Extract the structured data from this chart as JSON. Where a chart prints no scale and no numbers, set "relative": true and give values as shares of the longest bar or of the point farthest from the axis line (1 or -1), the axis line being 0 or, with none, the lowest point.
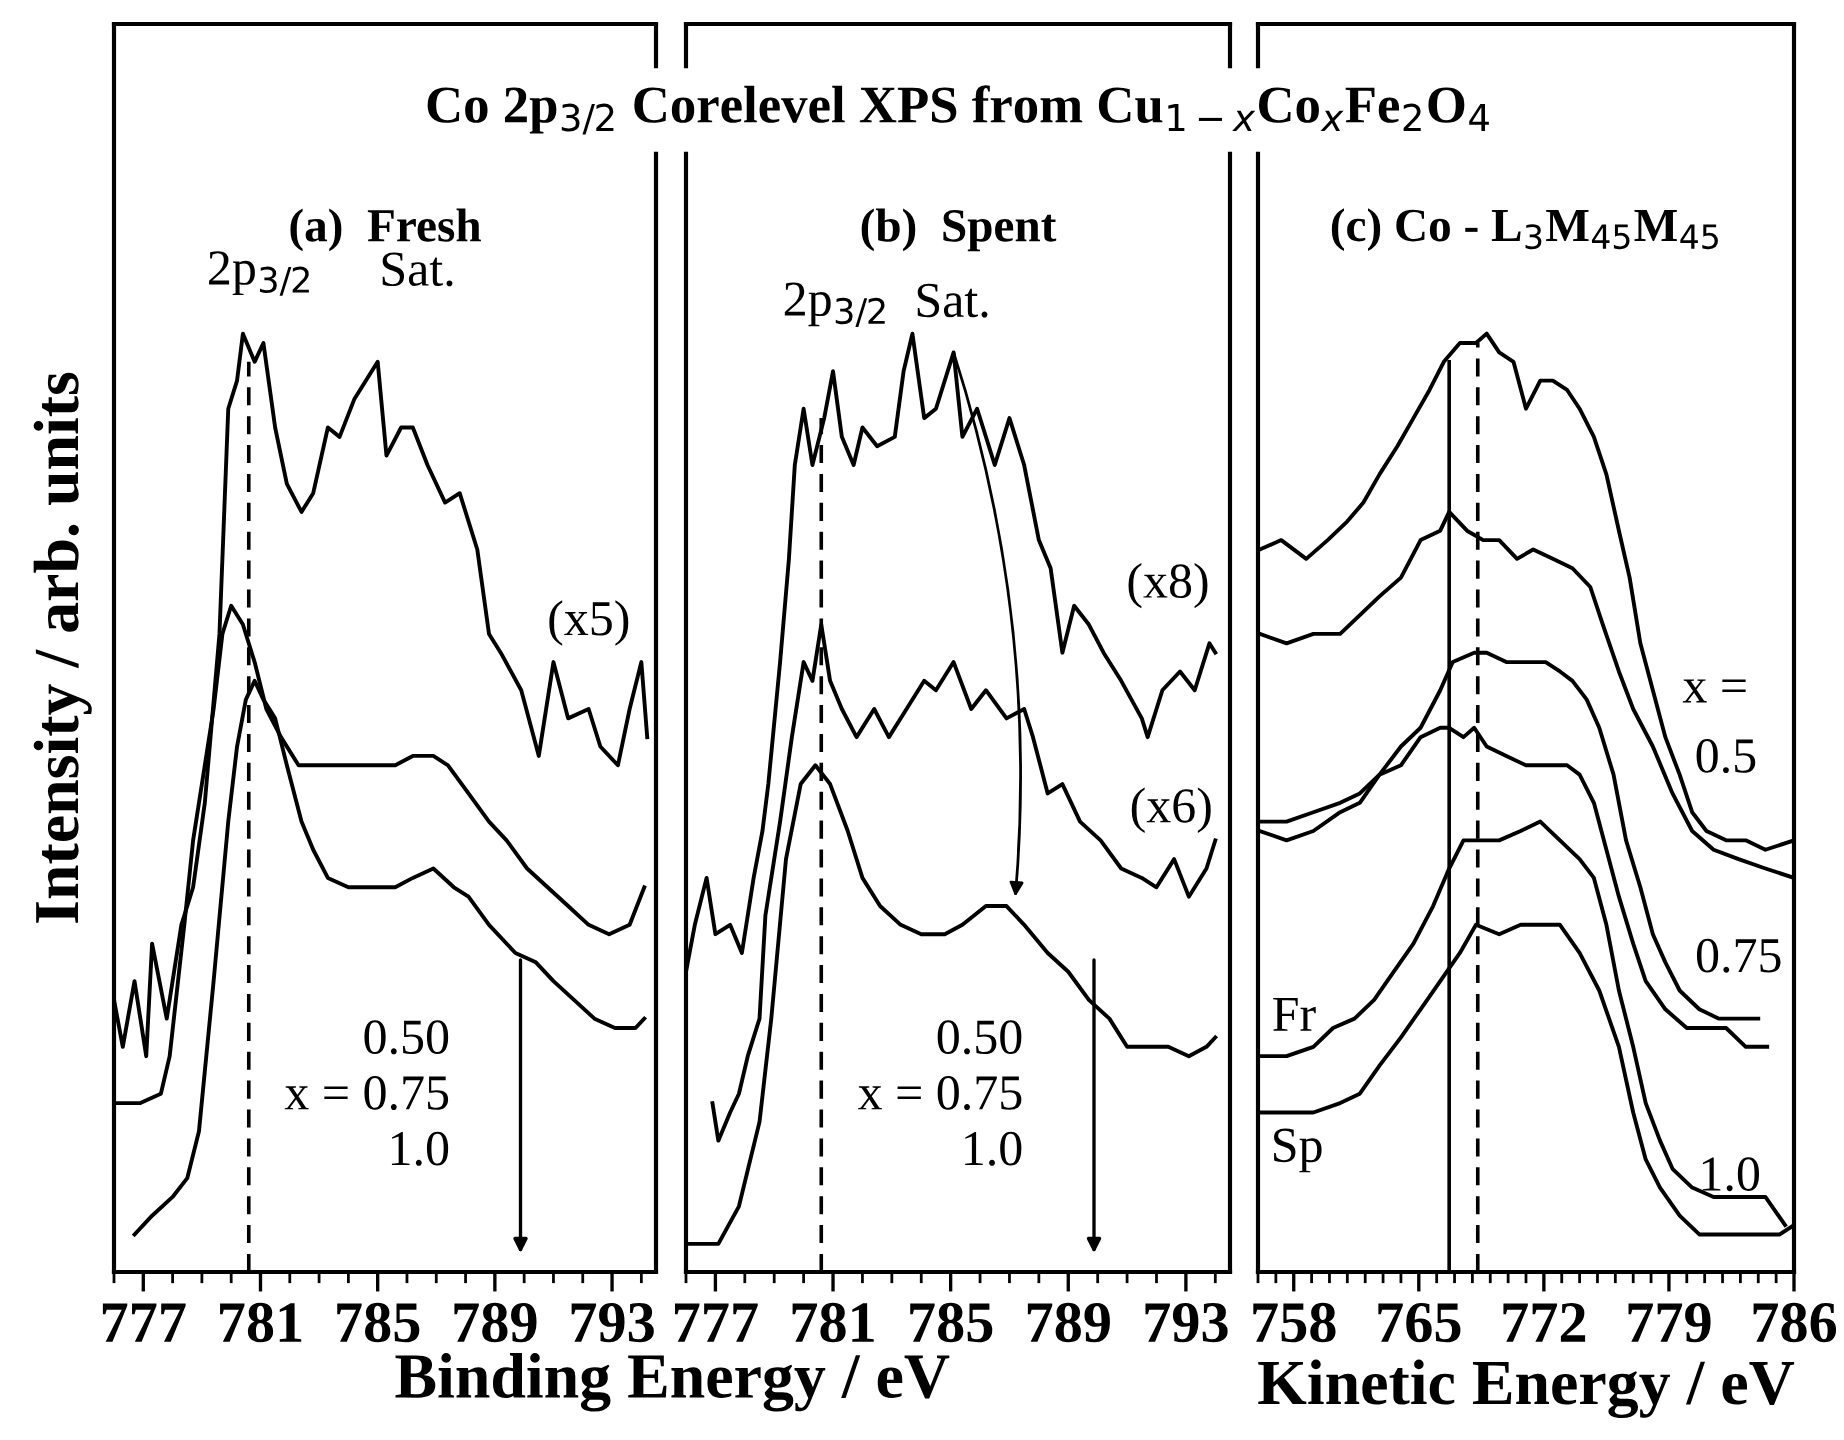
{
  "chart_data": [
    {
      "type": "line",
      "title": "Co 2p$_{3/2}$ Corelevel XPS from Cu$_{1−x}$Co$_{x}$Fe$_{2}$O$_{4}$",
      "subtitle": "(a)  Fresh",
      "xlabel": "Binding Energy / eV",
      "ylabel": "Intensity / arb. units",
      "relative": true,
      "xlim": [
        776,
        794.5
      ],
      "xticks": [
        777,
        781,
        785,
        789,
        793
      ],
      "tick_labels": "x",
      "grid": false,
      "legend": false,
      "color": "#000000",
      "series": [
        {
          "x": [
            776.0,
            776.3,
            776.7,
            777.1,
            777.3,
            777.8,
            778.3,
            778.7,
            779.1,
            779.6,
            779.9,
            780.2,
            780.4,
            780.8,
            781.1,
            781.5,
            781.9,
            782.4,
            782.8,
            783.3,
            783.7,
            784.2,
            784.6,
            785.0,
            785.3,
            785.8,
            786.2,
            786.7,
            787.3,
            787.8,
            788.4,
            788.8,
            789.2,
            789.9,
            790.5,
            791.0,
            791.5,
            792.2,
            792.6,
            793.2,
            793.6,
            794.0,
            794.2
          ],
          "values": [
            0.29,
            0.24,
            0.31,
            0.23,
            0.35,
            0.27,
            0.37,
            0.41,
            0.5,
            0.68,
            0.92,
            0.95,
            1.0,
            0.97,
            0.99,
            0.9,
            0.84,
            0.81,
            0.83,
            0.9,
            0.89,
            0.93,
            0.95,
            0.97,
            0.87,
            0.9,
            0.9,
            0.86,
            0.82,
            0.83,
            0.77,
            0.68,
            0.66,
            0.62,
            0.55,
            0.65,
            0.59,
            0.6,
            0.56,
            0.54,
            0.6,
            0.65,
            0.57
          ]
        },
        {
          "x": [
            776.1,
            776.9,
            777.6,
            777.9,
            778.4,
            778.7,
            779.4,
            779.7,
            780.0,
            780.4,
            780.8,
            781.2,
            781.7,
            782.3,
            782.8,
            783.7,
            784.6,
            785.6,
            786.2,
            786.9,
            787.4,
            788.1,
            788.8,
            789.4,
            790.1,
            790.8,
            791.5,
            792.2,
            792.9,
            793.6,
            794.1
          ],
          "values": [
            0.18,
            0.18,
            0.19,
            0.23,
            0.37,
            0.46,
            0.6,
            0.68,
            0.71,
            0.69,
            0.65,
            0.6,
            0.57,
            0.54,
            0.54,
            0.54,
            0.54,
            0.54,
            0.55,
            0.55,
            0.54,
            0.51,
            0.48,
            0.46,
            0.43,
            0.41,
            0.39,
            0.37,
            0.36,
            0.37,
            0.41
          ]
        },
        {
          "x": [
            776.7,
            777.3,
            778.0,
            778.5,
            778.9,
            779.4,
            779.9,
            780.2,
            780.5,
            780.8,
            781.1,
            781.5,
            781.9,
            782.4,
            782.8,
            783.3,
            784.0,
            784.6,
            785.6,
            786.2,
            786.9,
            787.6,
            788.1,
            788.8,
            789.7,
            790.4,
            791.0,
            791.7,
            792.4,
            793.1,
            793.8,
            794.1
          ],
          "values": [
            0.04,
            0.06,
            0.08,
            0.1,
            0.15,
            0.31,
            0.48,
            0.56,
            0.61,
            0.63,
            0.61,
            0.59,
            0.54,
            0.48,
            0.45,
            0.42,
            0.41,
            0.41,
            0.41,
            0.42,
            0.43,
            0.41,
            0.4,
            0.37,
            0.34,
            0.33,
            0.31,
            0.29,
            0.27,
            0.26,
            0.26,
            0.27
          ]
        }
      ],
      "ref_lines": [
        {
          "axis": "x",
          "value": 780.6,
          "line_style": "dashed"
        }
      ],
      "annotations": [
        "2p$_{3/2}$",
        "Sat.",
        "(x5)",
        "0.50\nx = 0.75\n1.0"
      ]
    },
    {
      "type": "line",
      "subtitle": "(b)  Spent",
      "relative": true,
      "xlim": [
        776,
        794.5
      ],
      "xticks": [
        777,
        781,
        785,
        789,
        793
      ],
      "tick_labels": "x",
      "grid": false,
      "legend": false,
      "color": "#000000",
      "series": [
        {
          "x": [
            776.0,
            776.3,
            776.7,
            777.0,
            777.5,
            777.9,
            778.3,
            778.6,
            778.8,
            779.2,
            779.5,
            779.7,
            780.0,
            780.3,
            780.7,
            781.0,
            781.3,
            781.7,
            782.0,
            782.5,
            783.1,
            783.4,
            783.7,
            784.1,
            784.5,
            785.1,
            785.4,
            785.9,
            786.5,
            787.0,
            787.5,
            788.0,
            788.4,
            788.8,
            789.2,
            789.7,
            790.2,
            790.8,
            791.5,
            791.7,
            792.2,
            792.8,
            793.3,
            793.8,
            794.0
          ],
          "values": [
            0.32,
            0.37,
            0.42,
            0.36,
            0.37,
            0.34,
            0.42,
            0.47,
            0.52,
            0.65,
            0.76,
            0.86,
            0.92,
            0.86,
            0.91,
            0.96,
            0.89,
            0.86,
            0.9,
            0.88,
            0.89,
            0.96,
            1.0,
            0.91,
            0.92,
            0.98,
            0.89,
            0.92,
            0.86,
            0.91,
            0.86,
            0.78,
            0.75,
            0.66,
            0.71,
            0.69,
            0.66,
            0.63,
            0.59,
            0.57,
            0.62,
            0.64,
            0.62,
            0.67,
            0.66
          ]
        },
        {
          "x": [
            776.9,
            777.1,
            777.5,
            777.8,
            778.1,
            778.5,
            778.7,
            779.2,
            779.6,
            780.0,
            780.3,
            780.6,
            780.9,
            781.3,
            781.8,
            782.4,
            782.9,
            783.5,
            784.1,
            784.5,
            785.1,
            785.7,
            786.2,
            786.9,
            787.5,
            787.8,
            788.3,
            788.8,
            789.4,
            790.1,
            790.8,
            791.5,
            792.0,
            792.6,
            793.1,
            793.7,
            794.0
          ],
          "values": [
            0.18,
            0.14,
            0.17,
            0.19,
            0.23,
            0.27,
            0.38,
            0.48,
            0.57,
            0.65,
            0.63,
            0.69,
            0.63,
            0.6,
            0.57,
            0.6,
            0.57,
            0.6,
            0.63,
            0.62,
            0.65,
            0.6,
            0.62,
            0.59,
            0.6,
            0.57,
            0.51,
            0.52,
            0.48,
            0.46,
            0.43,
            0.42,
            0.41,
            0.44,
            0.4,
            0.43,
            0.46
          ]
        },
        {
          "x": [
            776.0,
            776.7,
            777.1,
            777.8,
            778.5,
            778.9,
            779.4,
            779.9,
            780.4,
            780.9,
            781.5,
            782.0,
            782.6,
            783.3,
            784.0,
            784.8,
            785.4,
            786.2,
            786.9,
            787.5,
            788.3,
            789.0,
            789.7,
            790.4,
            791.0,
            791.7,
            792.4,
            793.1,
            793.7,
            794.0
          ],
          "values": [
            0.03,
            0.03,
            0.03,
            0.07,
            0.16,
            0.27,
            0.44,
            0.52,
            0.54,
            0.52,
            0.47,
            0.42,
            0.39,
            0.37,
            0.36,
            0.36,
            0.37,
            0.39,
            0.39,
            0.37,
            0.34,
            0.32,
            0.29,
            0.27,
            0.24,
            0.24,
            0.24,
            0.23,
            0.24,
            0.25
          ]
        }
      ],
      "ref_lines": [
        {
          "axis": "x",
          "value": 780.6,
          "line_style": "dashed"
        }
      ],
      "annotations": [
        "2p$_{3/2}$",
        "Sat.",
        "(x8)",
        "(x6)",
        "0.50\nx = 0.75\n1.0"
      ]
    },
    {
      "type": "line",
      "subtitle": "(c) Co - L$_{3}$M$_{45}$M$_{45}$",
      "xlabel": "Kinetic Energy / eV",
      "relative": true,
      "xlim": [
        756,
        786
      ],
      "xticks": [
        758,
        765,
        772,
        779,
        786
      ],
      "tick_labels": "x",
      "grid": false,
      "legend": false,
      "color": "#000000",
      "series": [
        {
          "x": [
            756.1,
            757.3,
            758.7,
            759.9,
            761.0,
            761.9,
            762.8,
            763.8,
            764.7,
            765.6,
            766.4,
            767.3,
            768.2,
            768.8,
            769.5,
            770.3,
            771.0,
            771.8,
            772.5,
            773.3,
            774.0,
            774.8,
            775.5,
            776.2,
            776.8,
            777.4,
            778.1,
            778.8,
            779.6,
            780.3,
            781.1,
            782.2,
            783.3,
            784.4,
            786.0
          ],
          "values": [
            0.77,
            0.78,
            0.76,
            0.78,
            0.8,
            0.82,
            0.85,
            0.88,
            0.91,
            0.94,
            0.97,
            0.99,
            0.99,
            1.0,
            0.98,
            0.97,
            0.92,
            0.95,
            0.95,
            0.94,
            0.92,
            0.89,
            0.85,
            0.79,
            0.74,
            0.67,
            0.62,
            0.57,
            0.53,
            0.49,
            0.47,
            0.46,
            0.46,
            0.45,
            0.46
          ]
        },
        {
          "x": [
            756.1,
            757.6,
            759.1,
            760.6,
            761.7,
            762.8,
            764.0,
            765.1,
            766.2,
            766.7,
            767.7,
            768.6,
            769.5,
            770.5,
            771.4,
            772.5,
            773.6,
            774.6,
            775.3,
            776.2,
            777.0,
            778.1,
            779.2,
            780.3,
            781.5,
            782.9,
            784.4,
            786.0
          ],
          "values": [
            0.68,
            0.67,
            0.68,
            0.68,
            0.7,
            0.72,
            0.74,
            0.78,
            0.79,
            0.81,
            0.79,
            0.78,
            0.78,
            0.76,
            0.77,
            0.76,
            0.75,
            0.73,
            0.69,
            0.64,
            0.6,
            0.56,
            0.51,
            0.47,
            0.45,
            0.44,
            0.43,
            0.42
          ]
        },
        {
          "x": [
            756.1,
            757.6,
            759.1,
            760.6,
            761.7,
            762.8,
            764.0,
            765.1,
            766.2,
            766.9,
            768.1,
            768.8,
            769.9,
            771.0,
            772.1,
            772.9,
            773.6,
            774.4,
            775.1,
            775.9,
            776.6,
            777.4,
            778.1,
            778.8,
            779.6,
            780.7,
            781.8,
            782.9,
            784.0
          ],
          "values": [
            0.48,
            0.48,
            0.49,
            0.5,
            0.51,
            0.53,
            0.56,
            0.58,
            0.62,
            0.65,
            0.66,
            0.66,
            0.65,
            0.65,
            0.65,
            0.64,
            0.63,
            0.61,
            0.58,
            0.53,
            0.46,
            0.41,
            0.36,
            0.33,
            0.3,
            0.28,
            0.27,
            0.27,
            0.27
          ]
        },
        {
          "x": [
            756.1,
            757.6,
            759.1,
            760.6,
            761.7,
            762.8,
            764.0,
            765.1,
            766.2,
            766.7,
            767.5,
            768.1,
            768.8,
            769.9,
            771.0,
            772.1,
            773.3,
            774.0,
            774.8,
            775.5,
            776.2,
            777.0,
            777.7,
            778.8,
            780.0,
            781.1,
            782.2,
            783.3,
            784.5
          ],
          "values": [
            0.47,
            0.46,
            0.47,
            0.49,
            0.5,
            0.53,
            0.54,
            0.57,
            0.58,
            0.58,
            0.57,
            0.58,
            0.56,
            0.55,
            0.54,
            0.54,
            0.54,
            0.53,
            0.5,
            0.45,
            0.4,
            0.35,
            0.31,
            0.28,
            0.26,
            0.26,
            0.26,
            0.24,
            0.24
          ]
        },
        {
          "x": [
            756.1,
            757.6,
            759.1,
            760.2,
            761.4,
            762.5,
            763.6,
            764.7,
            765.8,
            766.7,
            767.5,
            768.4,
            769.5,
            770.7,
            771.8,
            772.9,
            774.0,
            774.8,
            775.5,
            776.2,
            777.0,
            777.7,
            778.5,
            779.2,
            780.3,
            781.5,
            782.9,
            784.4,
            785.5
          ],
          "values": [
            0.23,
            0.23,
            0.24,
            0.26,
            0.27,
            0.29,
            0.32,
            0.35,
            0.39,
            0.43,
            0.46,
            0.46,
            0.46,
            0.47,
            0.48,
            0.46,
            0.44,
            0.42,
            0.37,
            0.3,
            0.24,
            0.18,
            0.14,
            0.11,
            0.09,
            0.08,
            0.08,
            0.08,
            0.05
          ]
        },
        {
          "x": [
            756.1,
            757.6,
            759.1,
            760.6,
            761.7,
            762.8,
            764.0,
            765.1,
            766.2,
            767.3,
            768.2,
            769.5,
            770.7,
            772.1,
            772.9,
            774.0,
            775.1,
            776.2,
            777.0,
            777.7,
            778.5,
            779.6,
            780.7,
            782.2,
            783.7,
            785.2,
            786.0
          ],
          "values": [
            0.17,
            0.17,
            0.17,
            0.18,
            0.19,
            0.22,
            0.25,
            0.28,
            0.31,
            0.34,
            0.37,
            0.36,
            0.37,
            0.37,
            0.37,
            0.34,
            0.3,
            0.24,
            0.17,
            0.12,
            0.09,
            0.06,
            0.04,
            0.04,
            0.04,
            0.04,
            0.05
          ]
        }
      ],
      "ref_lines": [
        {
          "axis": "x",
          "value": 766.7,
          "line_style": "solid"
        },
        {
          "axis": "x",
          "value": 768.3,
          "line_style": "dashed"
        }
      ],
      "annotations": [
        "x =",
        "0.5",
        "0.75",
        "1.0",
        "Fr",
        "Sp"
      ]
    }
  ]
}
